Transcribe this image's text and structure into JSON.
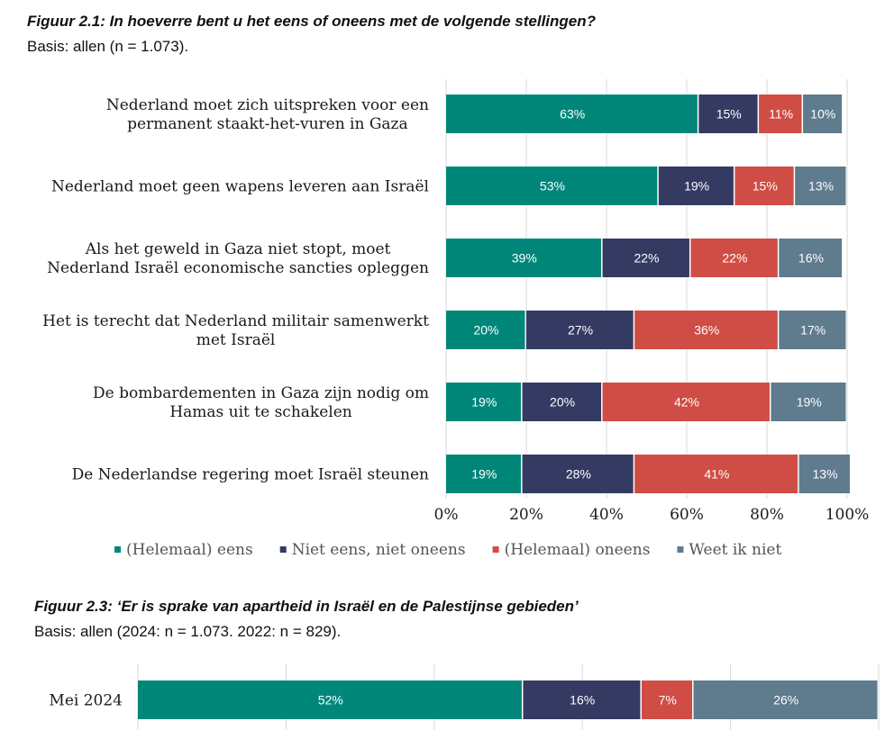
{
  "chart_data": [
    {
      "type": "bar",
      "orientation": "horizontal",
      "stacked": true,
      "title": "Figuur 2.1: In hoeverre bent u het eens of oneens met de volgende stellingen?",
      "subtitle": "Basis: allen (n = 1.073).",
      "categories": [
        [
          "Nederland moet zich uitspreken voor een",
          "permanent staakt-het-vuren in Gaza"
        ],
        [
          "Nederland moet geen wapens leveren aan Israël"
        ],
        [
          "Als het geweld in Gaza niet stopt, moet",
          "Nederland Israël economische sancties opleggen"
        ],
        [
          "Het is terecht dat Nederland militair samenwerkt",
          "met Israël"
        ],
        [
          "De bombardementen in Gaza zijn nodig om",
          "Hamas uit te schakelen"
        ],
        [
          "De Nederlandse regering moet Israël steunen"
        ]
      ],
      "series": [
        {
          "name": "(Helemaal) eens",
          "color": "#00877a",
          "values": [
            63,
            53,
            39,
            20,
            19,
            19
          ]
        },
        {
          "name": "Niet eens, niet oneens",
          "color": "#353a63",
          "values": [
            15,
            19,
            22,
            27,
            20,
            28
          ]
        },
        {
          "name": "(Helemaal) oneens",
          "color": "#cf4d45",
          "values": [
            11,
            15,
            22,
            36,
            42,
            41
          ]
        },
        {
          "name": "Weet ik niet",
          "color": "#5f7b8e",
          "values": [
            10,
            13,
            16,
            17,
            19,
            13
          ]
        }
      ],
      "xlim": [
        0,
        100
      ],
      "xticks": [
        "0%",
        "20%",
        "40%",
        "60%",
        "80%",
        "100%"
      ],
      "grid": true,
      "legend": "bottom"
    },
    {
      "type": "bar",
      "orientation": "horizontal",
      "stacked": true,
      "title": "Figuur 2.3: ‘Er is sprake van apartheid in Israël en de Palestijnse gebieden’",
      "subtitle": "Basis: allen (2024: n = 1.073. 2022: n = 829).",
      "categories": [
        "Mei 2024"
      ],
      "series": [
        {
          "name": "",
          "color": "#00877a",
          "values": [
            52
          ]
        },
        {
          "name": "",
          "color": "#353a63",
          "values": [
            16
          ]
        },
        {
          "name": "",
          "color": "#cf4d45",
          "values": [
            7
          ]
        },
        {
          "name": "",
          "color": "#5f7b8e",
          "values": [
            26
          ]
        }
      ],
      "xlim": [
        0,
        100
      ],
      "grid": true
    }
  ]
}
